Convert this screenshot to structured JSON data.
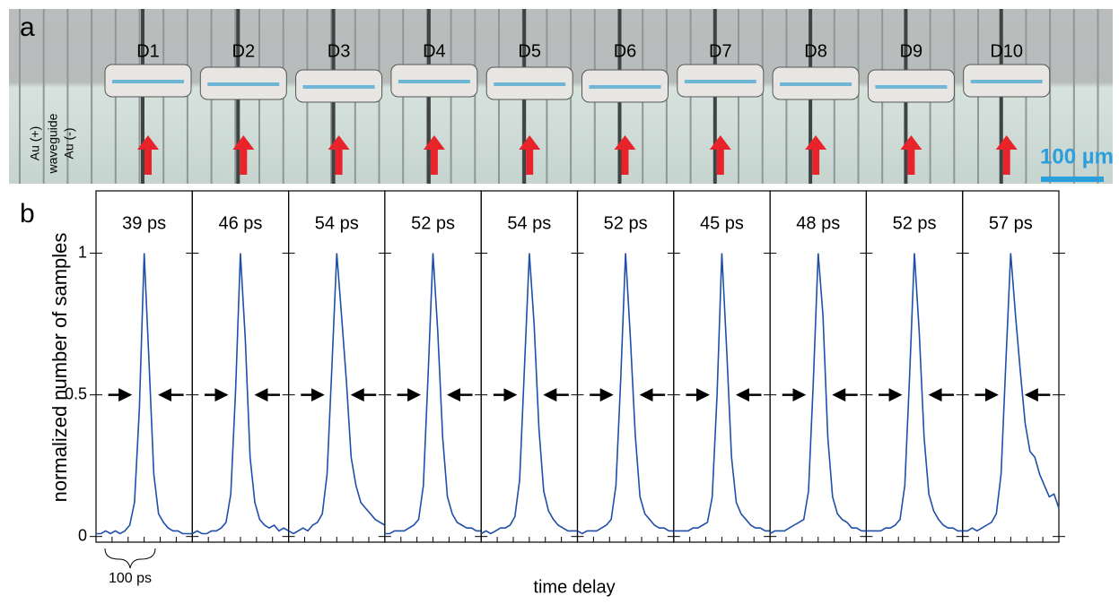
{
  "panel_a": {
    "label": "a",
    "devices": [
      "D1",
      "D2",
      "D3",
      "D4",
      "D5",
      "D6",
      "D7",
      "D8",
      "D9",
      "D10"
    ],
    "side_labels": [
      "Au (+)",
      "waveguide",
      "Au (-)"
    ],
    "scale_bar": "100 µm"
  },
  "panel_b": {
    "label": "b",
    "ylabel": "normalized number of samples",
    "xlabel": "time delay",
    "scale_label": "100 ps"
  },
  "chart_data": [
    {
      "type": "line",
      "title": "39 ps",
      "color": "#1f4fa8",
      "xlim": [
        0,
        300
      ],
      "ylim": [
        -0.02,
        1.22
      ],
      "yticks": [
        0,
        0.5,
        1
      ],
      "x": [
        0,
        15,
        30,
        45,
        60,
        75,
        90,
        105,
        120,
        135,
        150,
        165,
        180,
        195,
        210,
        225,
        240,
        255,
        270,
        285,
        300
      ],
      "values": [
        0.01,
        0.01,
        0.02,
        0.01,
        0.02,
        0.01,
        0.02,
        0.04,
        0.12,
        0.45,
        1.0,
        0.62,
        0.22,
        0.08,
        0.05,
        0.03,
        0.02,
        0.02,
        0.01,
        0.01,
        0.01
      ]
    },
    {
      "type": "line",
      "title": "46 ps",
      "color": "#1f4fa8",
      "xlim": [
        0,
        300
      ],
      "ylim": [
        -0.02,
        1.22
      ],
      "x": [
        0,
        15,
        30,
        45,
        60,
        75,
        90,
        105,
        120,
        135,
        150,
        165,
        180,
        195,
        210,
        225,
        240,
        255,
        270,
        285,
        300
      ],
      "values": [
        0.01,
        0.02,
        0.01,
        0.01,
        0.02,
        0.02,
        0.03,
        0.05,
        0.15,
        0.52,
        1.0,
        0.7,
        0.28,
        0.12,
        0.06,
        0.04,
        0.03,
        0.04,
        0.02,
        0.03,
        0.02
      ]
    },
    {
      "type": "line",
      "title": "54 ps",
      "color": "#1f4fa8",
      "xlim": [
        0,
        300
      ],
      "ylim": [
        -0.02,
        1.22
      ],
      "x": [
        0,
        15,
        30,
        45,
        60,
        75,
        90,
        105,
        120,
        135,
        150,
        165,
        180,
        195,
        210,
        225,
        240,
        255,
        270,
        285,
        300
      ],
      "values": [
        0.02,
        0.01,
        0.02,
        0.03,
        0.02,
        0.04,
        0.05,
        0.08,
        0.22,
        0.6,
        1.0,
        0.78,
        0.55,
        0.28,
        0.18,
        0.12,
        0.1,
        0.08,
        0.06,
        0.05,
        0.04
      ]
    },
    {
      "type": "line",
      "title": "52 ps",
      "color": "#1f4fa8",
      "xlim": [
        0,
        300
      ],
      "ylim": [
        -0.02,
        1.22
      ],
      "x": [
        0,
        15,
        30,
        45,
        60,
        75,
        90,
        105,
        120,
        135,
        150,
        165,
        180,
        195,
        210,
        225,
        240,
        255,
        270,
        285,
        300
      ],
      "values": [
        0.01,
        0.01,
        0.02,
        0.02,
        0.02,
        0.03,
        0.04,
        0.06,
        0.18,
        0.58,
        1.0,
        0.72,
        0.35,
        0.14,
        0.08,
        0.05,
        0.04,
        0.03,
        0.03,
        0.02,
        0.02
      ]
    },
    {
      "type": "line",
      "title": "54 ps",
      "color": "#1f4fa8",
      "xlim": [
        0,
        300
      ],
      "ylim": [
        -0.02,
        1.22
      ],
      "x": [
        0,
        15,
        30,
        45,
        60,
        75,
        90,
        105,
        120,
        135,
        150,
        165,
        180,
        195,
        210,
        225,
        240,
        255,
        270,
        285,
        300
      ],
      "values": [
        0.01,
        0.02,
        0.01,
        0.02,
        0.03,
        0.03,
        0.04,
        0.07,
        0.2,
        0.6,
        1.0,
        0.75,
        0.38,
        0.16,
        0.09,
        0.06,
        0.04,
        0.03,
        0.02,
        0.02,
        0.02
      ]
    },
    {
      "type": "line",
      "title": "52 ps",
      "color": "#1f4fa8",
      "xlim": [
        0,
        300
      ],
      "ylim": [
        -0.02,
        1.22
      ],
      "x": [
        0,
        15,
        30,
        45,
        60,
        75,
        90,
        105,
        120,
        135,
        150,
        165,
        180,
        195,
        210,
        225,
        240,
        255,
        270,
        285,
        300
      ],
      "values": [
        0.02,
        0.01,
        0.02,
        0.02,
        0.02,
        0.03,
        0.04,
        0.06,
        0.18,
        0.56,
        1.0,
        0.7,
        0.36,
        0.14,
        0.08,
        0.06,
        0.04,
        0.03,
        0.03,
        0.02,
        0.02
      ]
    },
    {
      "type": "line",
      "title": "45 ps",
      "color": "#1f4fa8",
      "xlim": [
        0,
        300
      ],
      "ylim": [
        -0.02,
        1.22
      ],
      "x": [
        0,
        15,
        30,
        45,
        60,
        75,
        90,
        105,
        120,
        135,
        150,
        165,
        180,
        195,
        210,
        225,
        240,
        255,
        270,
        285,
        300
      ],
      "values": [
        0.02,
        0.02,
        0.02,
        0.02,
        0.03,
        0.03,
        0.04,
        0.05,
        0.14,
        0.5,
        1.0,
        0.66,
        0.28,
        0.12,
        0.08,
        0.06,
        0.04,
        0.03,
        0.03,
        0.02,
        0.02
      ]
    },
    {
      "type": "line",
      "title": "48 ps",
      "color": "#1f4fa8",
      "xlim": [
        0,
        300
      ],
      "ylim": [
        -0.02,
        1.22
      ],
      "x": [
        0,
        15,
        30,
        45,
        60,
        75,
        90,
        105,
        120,
        135,
        150,
        165,
        180,
        195,
        210,
        225,
        240,
        255,
        270,
        285,
        300
      ],
      "values": [
        0.01,
        0.02,
        0.02,
        0.02,
        0.03,
        0.04,
        0.05,
        0.06,
        0.16,
        0.55,
        1.0,
        0.78,
        0.35,
        0.14,
        0.08,
        0.06,
        0.05,
        0.03,
        0.03,
        0.02,
        0.02
      ]
    },
    {
      "type": "line",
      "title": "52 ps",
      "color": "#1f4fa8",
      "xlim": [
        0,
        300
      ],
      "ylim": [
        -0.02,
        1.22
      ],
      "x": [
        0,
        15,
        30,
        45,
        60,
        75,
        90,
        105,
        120,
        135,
        150,
        165,
        180,
        195,
        210,
        225,
        240,
        255,
        270,
        285,
        300
      ],
      "values": [
        0.02,
        0.02,
        0.02,
        0.02,
        0.03,
        0.03,
        0.04,
        0.06,
        0.18,
        0.57,
        1.0,
        0.72,
        0.35,
        0.15,
        0.09,
        0.06,
        0.04,
        0.03,
        0.03,
        0.02,
        0.02
      ]
    },
    {
      "type": "line",
      "title": "57 ps",
      "color": "#1f4fa8",
      "xlim": [
        0,
        300
      ],
      "ylim": [
        -0.02,
        1.22
      ],
      "x": [
        0,
        15,
        30,
        45,
        60,
        75,
        90,
        105,
        120,
        135,
        150,
        165,
        180,
        195,
        210,
        225,
        240,
        255,
        270,
        285,
        300
      ],
      "values": [
        0.02,
        0.02,
        0.03,
        0.02,
        0.03,
        0.04,
        0.05,
        0.08,
        0.22,
        0.62,
        1.0,
        0.78,
        0.58,
        0.4,
        0.3,
        0.28,
        0.22,
        0.18,
        0.14,
        0.15,
        0.1
      ]
    }
  ]
}
